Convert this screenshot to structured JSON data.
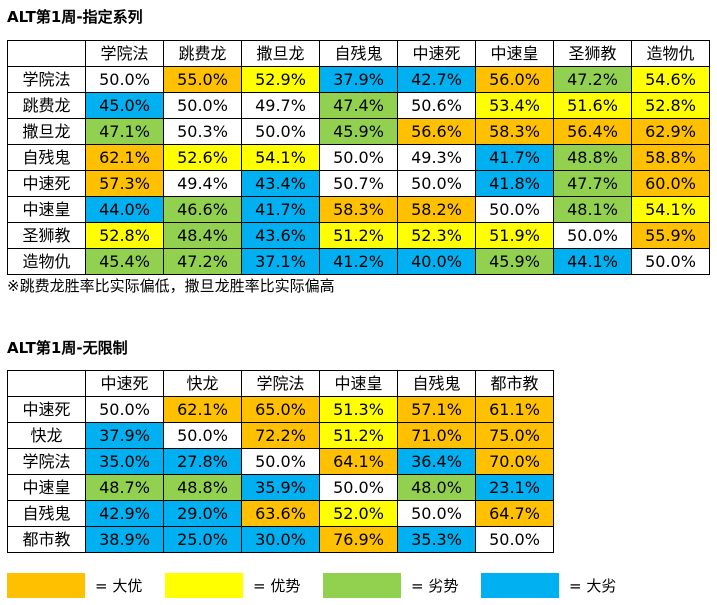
{
  "colors": {
    "O": "#FFC000",
    "Y": "#FFFF00",
    "G": "#92D050",
    "B": "#00B0F0",
    "W": "#FFFFFF"
  },
  "table1": {
    "title": "ALT第1周-指定系列",
    "columns": [
      "学院法",
      "跳费龙",
      "撒旦龙",
      "自残鬼",
      "中速死",
      "中速皇",
      "圣狮教",
      "造物仇"
    ],
    "rows": [
      {
        "name": "学院法",
        "values": [
          "50.0%",
          "55.0%",
          "52.9%",
          "37.9%",
          "42.7%",
          "56.0%",
          "47.2%",
          "54.6%"
        ],
        "colors": [
          "W",
          "O",
          "Y",
          "B",
          "B",
          "O",
          "G",
          "Y"
        ]
      },
      {
        "name": "跳费龙",
        "values": [
          "45.0%",
          "50.0%",
          "49.7%",
          "47.4%",
          "50.6%",
          "53.4%",
          "51.6%",
          "52.8%"
        ],
        "colors": [
          "B",
          "W",
          "W",
          "G",
          "W",
          "Y",
          "Y",
          "Y"
        ]
      },
      {
        "name": "撒旦龙",
        "values": [
          "47.1%",
          "50.3%",
          "50.0%",
          "45.9%",
          "56.6%",
          "58.3%",
          "56.4%",
          "62.9%"
        ],
        "colors": [
          "G",
          "W",
          "W",
          "G",
          "O",
          "O",
          "O",
          "O"
        ]
      },
      {
        "name": "自残鬼",
        "values": [
          "62.1%",
          "52.6%",
          "54.1%",
          "50.0%",
          "49.3%",
          "41.7%",
          "48.8%",
          "58.8%"
        ],
        "colors": [
          "O",
          "Y",
          "Y",
          "W",
          "W",
          "B",
          "G",
          "O"
        ]
      },
      {
        "name": "中速死",
        "values": [
          "57.3%",
          "49.4%",
          "43.4%",
          "50.7%",
          "50.0%",
          "41.8%",
          "47.7%",
          "60.0%"
        ],
        "colors": [
          "O",
          "W",
          "B",
          "W",
          "W",
          "B",
          "G",
          "O"
        ]
      },
      {
        "name": "中速皇",
        "values": [
          "44.0%",
          "46.6%",
          "41.7%",
          "58.3%",
          "58.2%",
          "50.0%",
          "48.1%",
          "54.1%"
        ],
        "colors": [
          "B",
          "G",
          "B",
          "O",
          "O",
          "W",
          "G",
          "Y"
        ]
      },
      {
        "name": "圣狮教",
        "values": [
          "52.8%",
          "48.4%",
          "43.6%",
          "51.2%",
          "52.3%",
          "51.9%",
          "50.0%",
          "55.9%"
        ],
        "colors": [
          "Y",
          "G",
          "B",
          "Y",
          "Y",
          "Y",
          "W",
          "O"
        ]
      },
      {
        "name": "造物仇",
        "values": [
          "45.4%",
          "47.2%",
          "37.1%",
          "41.2%",
          "40.0%",
          "45.9%",
          "44.1%",
          "50.0%"
        ],
        "colors": [
          "G",
          "G",
          "B",
          "B",
          "B",
          "G",
          "B",
          "W"
        ]
      }
    ],
    "note": "※跳费龙胜率比实际偏低，撒旦龙胜率比实际偏高"
  },
  "table2": {
    "title": "ALT第1周-无限制",
    "columns": [
      "中速死",
      "快龙",
      "学院法",
      "中速皇",
      "自残鬼",
      "都市教"
    ],
    "rows": [
      {
        "name": "中速死",
        "values": [
          "50.0%",
          "62.1%",
          "65.0%",
          "51.3%",
          "57.1%",
          "61.1%"
        ],
        "colors": [
          "W",
          "O",
          "O",
          "Y",
          "O",
          "O"
        ]
      },
      {
        "name": "快龙",
        "values": [
          "37.9%",
          "50.0%",
          "72.2%",
          "51.2%",
          "71.0%",
          "75.0%"
        ],
        "colors": [
          "B",
          "W",
          "O",
          "Y",
          "O",
          "O"
        ]
      },
      {
        "name": "学院法",
        "values": [
          "35.0%",
          "27.8%",
          "50.0%",
          "64.1%",
          "36.4%",
          "70.0%"
        ],
        "colors": [
          "B",
          "B",
          "W",
          "O",
          "B",
          "O"
        ]
      },
      {
        "name": "中速皇",
        "values": [
          "48.7%",
          "48.8%",
          "35.9%",
          "50.0%",
          "48.0%",
          "23.1%"
        ],
        "colors": [
          "G",
          "G",
          "B",
          "W",
          "G",
          "B"
        ]
      },
      {
        "name": "自残鬼",
        "values": [
          "42.9%",
          "29.0%",
          "63.6%",
          "52.0%",
          "50.0%",
          "64.7%"
        ],
        "colors": [
          "B",
          "B",
          "O",
          "Y",
          "W",
          "O"
        ]
      },
      {
        "name": "都市教",
        "values": [
          "38.9%",
          "25.0%",
          "30.0%",
          "76.9%",
          "35.3%",
          "50.0%"
        ],
        "colors": [
          "B",
          "B",
          "B",
          "O",
          "B",
          "W"
        ]
      }
    ]
  },
  "legend": [
    {
      "color": "O",
      "label": "= 大优"
    },
    {
      "color": "Y",
      "label": "= 优势"
    },
    {
      "color": "G",
      "label": "= 劣势"
    },
    {
      "color": "B",
      "label": "= 大劣"
    }
  ]
}
